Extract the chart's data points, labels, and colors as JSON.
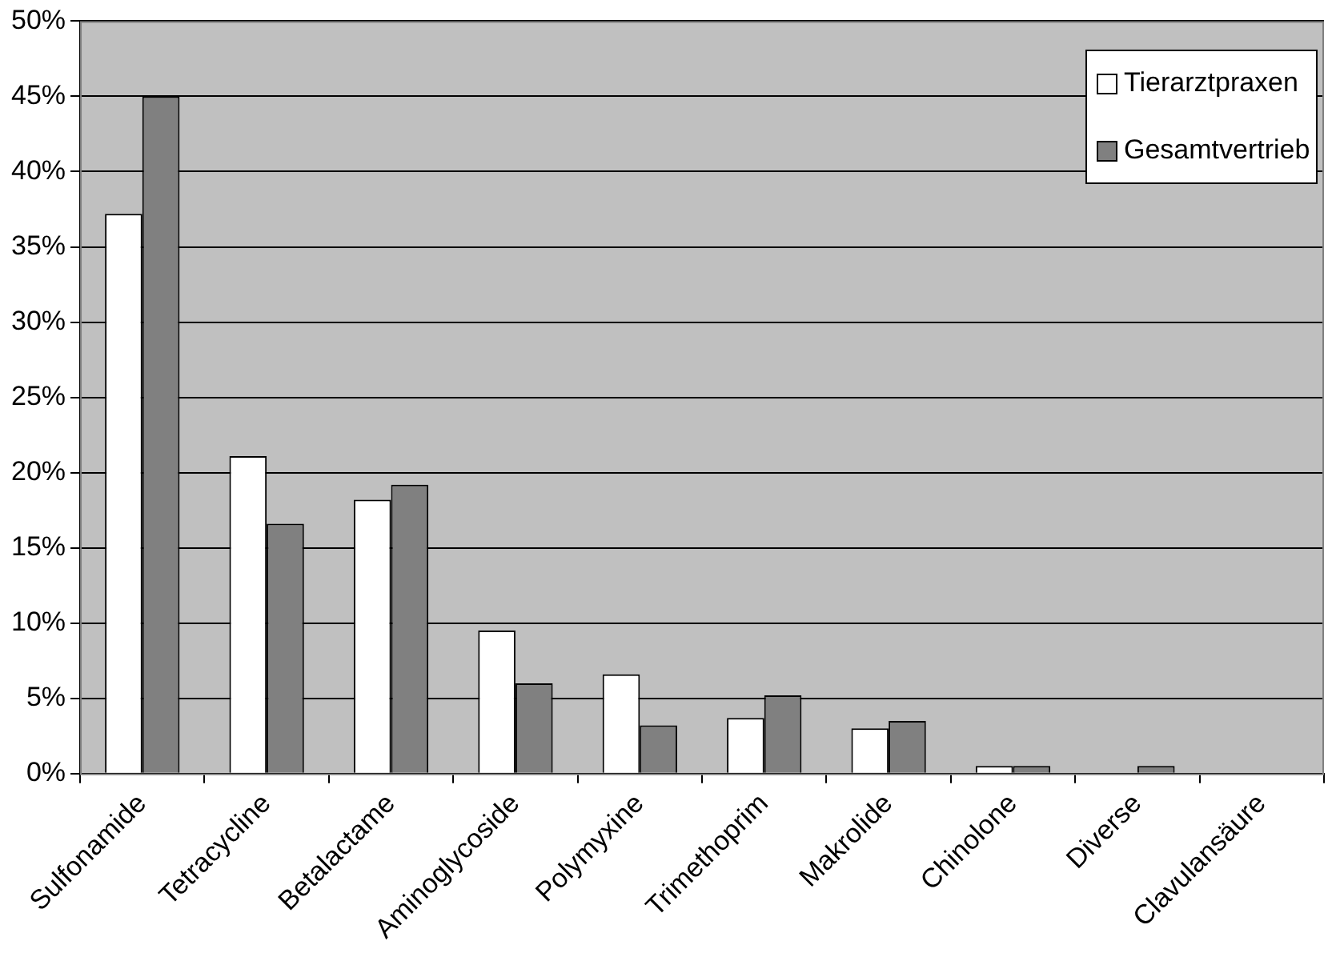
{
  "chart_data": {
    "type": "bar",
    "categories": [
      "Sulfonamide",
      "Tetracycline",
      "Betalactame",
      "Aminoglycoside",
      "Polymyxine",
      "Trimethoprim",
      "Makrolide",
      "Chinolone",
      "Diverse",
      "Clavulansäure"
    ],
    "series": [
      {
        "name": "Tierarztpraxen",
        "color": "#ffffff",
        "values": [
          37.2,
          21.1,
          18.2,
          9.5,
          6.6,
          3.7,
          3.0,
          0.5,
          0,
          0
        ]
      },
      {
        "name": "Gesamtvertrieb",
        "color": "#808080",
        "values": [
          45.0,
          16.6,
          19.2,
          6.0,
          3.2,
          5.2,
          3.5,
          0.5,
          0.5,
          0
        ]
      }
    ],
    "ylim": [
      0,
      50
    ],
    "yticks": [
      {
        "value": 0,
        "label": "0%"
      },
      {
        "value": 5,
        "label": "5%"
      },
      {
        "value": 10,
        "label": "10%"
      },
      {
        "value": 15,
        "label": "15%"
      },
      {
        "value": 20,
        "label": "20%"
      },
      {
        "value": 25,
        "label": "25%"
      },
      {
        "value": 30,
        "label": "30%"
      },
      {
        "value": 35,
        "label": "35%"
      },
      {
        "value": 40,
        "label": "40%"
      },
      {
        "value": 45,
        "label": "45%"
      },
      {
        "value": 50,
        "label": "50%"
      }
    ],
    "grid": "y",
    "legend": "top right"
  }
}
